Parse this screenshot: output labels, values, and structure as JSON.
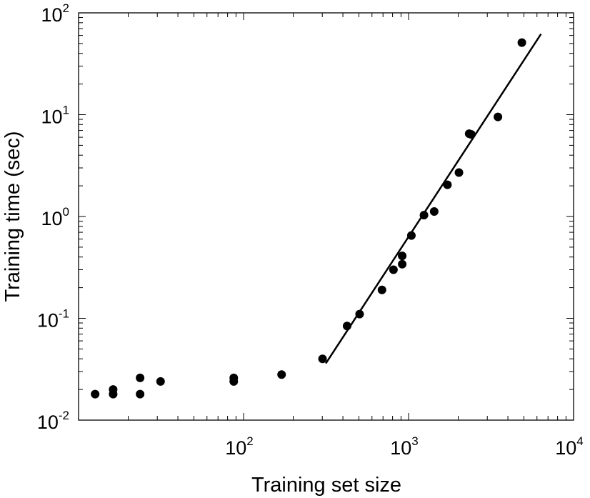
{
  "chart_data": {
    "type": "scatter",
    "xlabel": "Training set size",
    "ylabel": "Training time (sec)",
    "xscale": "log",
    "yscale": "log",
    "xlim": [
      10,
      10000
    ],
    "ylim": [
      0.01,
      100
    ],
    "xticks": [
      {
        "base": "10",
        "exp": "2",
        "value": 100
      },
      {
        "base": "10",
        "exp": "3",
        "value": 1000
      },
      {
        "base": "10",
        "exp": "4",
        "value": 10000
      }
    ],
    "yticks": [
      {
        "base": "10",
        "exp": "-2",
        "value": 0.01
      },
      {
        "base": "10",
        "exp": "-1",
        "value": 0.1
      },
      {
        "base": "10",
        "exp": "0",
        "value": 1
      },
      {
        "base": "10",
        "exp": "1",
        "value": 10
      },
      {
        "base": "10",
        "exp": "2",
        "value": 100
      }
    ],
    "grid": false,
    "series": [
      {
        "points": [
          {
            "x": 12.6,
            "y": 0.018
          },
          {
            "x": 16.2,
            "y": 0.02
          },
          {
            "x": 16.2,
            "y": 0.018
          },
          {
            "x": 23.6,
            "y": 0.026
          },
          {
            "x": 23.6,
            "y": 0.018
          },
          {
            "x": 31.4,
            "y": 0.024
          },
          {
            "x": 87.2,
            "y": 0.026
          },
          {
            "x": 87.2,
            "y": 0.024
          },
          {
            "x": 170,
            "y": 0.028
          },
          {
            "x": 301,
            "y": 0.04
          },
          {
            "x": 424,
            "y": 0.084
          },
          {
            "x": 505,
            "y": 0.11
          },
          {
            "x": 690,
            "y": 0.19
          },
          {
            "x": 810,
            "y": 0.3
          },
          {
            "x": 915,
            "y": 0.34
          },
          {
            "x": 915,
            "y": 0.41
          },
          {
            "x": 1040,
            "y": 0.65
          },
          {
            "x": 1240,
            "y": 1.03
          },
          {
            "x": 1430,
            "y": 1.12
          },
          {
            "x": 1720,
            "y": 2.05
          },
          {
            "x": 2020,
            "y": 2.7
          },
          {
            "x": 2330,
            "y": 6.5
          },
          {
            "x": 2400,
            "y": 6.4
          },
          {
            "x": 3480,
            "y": 9.5
          },
          {
            "x": 4860,
            "y": 51.0
          }
        ]
      }
    ],
    "fit_line": {
      "x": [
        315,
        6350
      ],
      "y": [
        0.036,
        62
      ]
    }
  }
}
